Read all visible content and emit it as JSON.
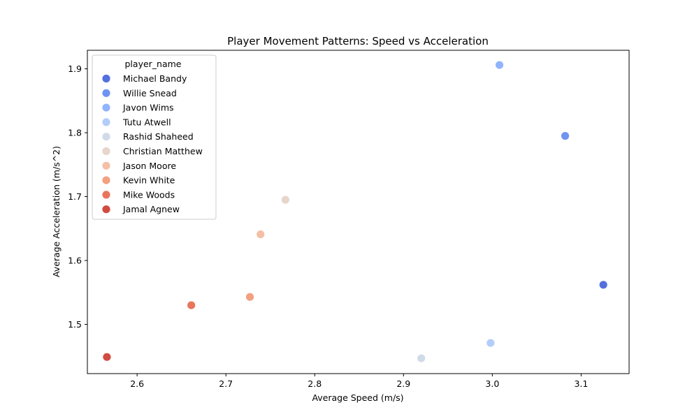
{
  "chart_data": {
    "type": "scatter",
    "title": "Player Movement Patterns: Speed vs Acceleration",
    "xlabel": "Average Speed (m/s)",
    "ylabel": "Average Acceleration (m/s^2)",
    "xlim": [
      2.544,
      3.154
    ],
    "ylim": [
      1.423,
      1.929
    ],
    "xticks": [
      2.6,
      2.7,
      2.8,
      2.9,
      3.0,
      3.1
    ],
    "yticks": [
      1.5,
      1.6,
      1.7,
      1.8,
      1.9
    ],
    "grid": false,
    "legend": {
      "title": "player_name",
      "placement": "top-left"
    },
    "series": [
      {
        "name": "Michael Bandy",
        "color": "#5470de",
        "x": [
          3.125
        ],
        "y": [
          1.562
        ]
      },
      {
        "name": "Willie Snead",
        "color": "#7093f3",
        "x": [
          3.082
        ],
        "y": [
          1.795
        ]
      },
      {
        "name": "Javon Wims",
        "color": "#92b4fe",
        "x": [
          3.008
        ],
        "y": [
          1.906
        ]
      },
      {
        "name": "Tutu Atwell",
        "color": "#b3cdfb",
        "x": [
          2.998
        ],
        "y": [
          1.471
        ]
      },
      {
        "name": "Rashid Shaheed",
        "color": "#d1dae9",
        "x": [
          2.92
        ],
        "y": [
          1.447
        ]
      },
      {
        "name": "Christian Matthew",
        "color": "#e8d5cb",
        "x": [
          2.767
        ],
        "y": [
          1.695
        ]
      },
      {
        "name": "Jason Moore",
        "color": "#f4c0a5",
        "x": [
          2.739
        ],
        "y": [
          1.641
        ]
      },
      {
        "name": "Kevin White",
        "color": "#f3a081",
        "x": [
          2.727
        ],
        "y": [
          1.543
        ]
      },
      {
        "name": "Mike Woods",
        "color": "#e8765c",
        "x": [
          2.661
        ],
        "y": [
          1.53
        ]
      },
      {
        "name": "Jamal Agnew",
        "color": "#d24b40",
        "x": [
          2.566
        ],
        "y": [
          1.449
        ]
      }
    ]
  }
}
